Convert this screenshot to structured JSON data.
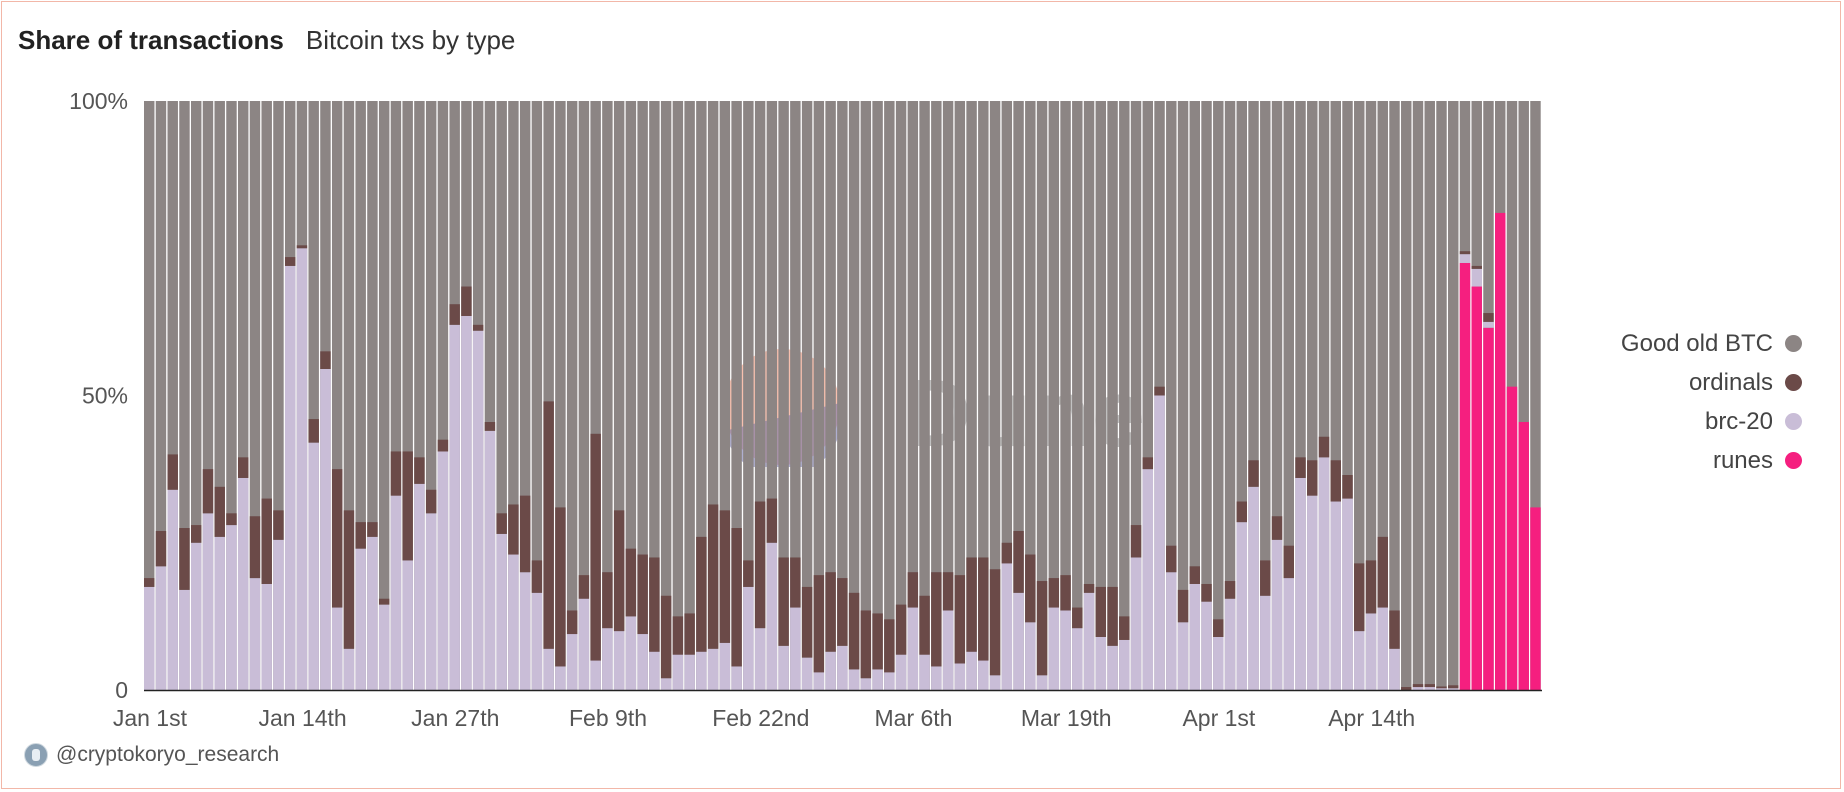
{
  "header": {
    "title": "Share of transactions",
    "subtitle": "Bitcoin txs by type"
  },
  "watermark": {
    "text": "Dune"
  },
  "credit": {
    "handle": "@cryptokoryo_research"
  },
  "legend": [
    {
      "label": "Good old BTC",
      "color": "#8c8584"
    },
    {
      "label": "ordinals",
      "color": "#6b4a48"
    },
    {
      "label": "brc-20",
      "color": "#c9bdd7"
    },
    {
      "label": "runes",
      "color": "#f51f7f"
    }
  ],
  "chart_data": {
    "type": "bar",
    "stacked": true,
    "normalized": true,
    "y_tick_labels": [
      "0",
      "50%",
      "100%"
    ],
    "ylim": [
      0,
      100
    ],
    "x_tick_labels": [
      "Jan 1st",
      "Jan 14th",
      "Jan 27th",
      "Feb 9th",
      "Feb 22nd",
      "Mar 6th",
      "Mar 19th",
      "Apr 1st",
      "Apr 14th"
    ],
    "x_tick_indices": [
      0,
      13,
      26,
      39,
      52,
      65,
      78,
      91,
      104
    ],
    "grid": false,
    "legend_position": "right",
    "series": [
      {
        "name": "runes",
        "color": "#f51f7f",
        "values": [
          0,
          0,
          0,
          0,
          0,
          0,
          0,
          0,
          0,
          0,
          0,
          0,
          0,
          0,
          0,
          0,
          0,
          0,
          0,
          0,
          0,
          0,
          0,
          0,
          0,
          0,
          0,
          0,
          0,
          0,
          0,
          0,
          0,
          0,
          0,
          0,
          0,
          0,
          0,
          0,
          0,
          0,
          0,
          0,
          0,
          0,
          0,
          0,
          0,
          0,
          0,
          0,
          0,
          0,
          0,
          0,
          0,
          0,
          0,
          0,
          0,
          0,
          0,
          0,
          0,
          0,
          0,
          0,
          0,
          0,
          0,
          0,
          0,
          0,
          0,
          0,
          0,
          0,
          0,
          0,
          0,
          0,
          0,
          0,
          0,
          0,
          0,
          0,
          0,
          0,
          0,
          0,
          0,
          0,
          0,
          0,
          0,
          0,
          0,
          0,
          0,
          0,
          0,
          0,
          0,
          0,
          0,
          0,
          0,
          0,
          0,
          0,
          72.5,
          68.5,
          61.5,
          81,
          51.5,
          45.5,
          31
        ]
      },
      {
        "name": "brc-20",
        "color": "#c9bdd7",
        "values": [
          17.5,
          21,
          34,
          17,
          25,
          30,
          26,
          28,
          36,
          19,
          18,
          25.5,
          72,
          75,
          42,
          54.5,
          14,
          7,
          24,
          26,
          14.5,
          33,
          22,
          35,
          30,
          40.5,
          62,
          63.5,
          61,
          44,
          26.5,
          23,
          20,
          16.5,
          7,
          4,
          9.5,
          15.5,
          5,
          10.5,
          10,
          12.5,
          9.5,
          6.5,
          2,
          6,
          6,
          6.5,
          7,
          8,
          4,
          17.5,
          10.5,
          25,
          7.5,
          14,
          5.5,
          3,
          6.5,
          7.5,
          3.5,
          2,
          3.5,
          3,
          6,
          14,
          6,
          4,
          13.5,
          4.5,
          6.5,
          5,
          2.5,
          21.5,
          16.5,
          11.5,
          2.5,
          14,
          13.5,
          10.5,
          16.5,
          9,
          7.5,
          8.5,
          22.5,
          37.5,
          50,
          20,
          11.5,
          18,
          15,
          9,
          15.5,
          28.5,
          34.5,
          16,
          25.5,
          19,
          36,
          33,
          39.5,
          32,
          32.5,
          10,
          13,
          14,
          7,
          0,
          0.5,
          0.5,
          0.3,
          0.3,
          1.5,
          3,
          1
        ]
      },
      {
        "name": "ordinals",
        "color": "#6b4a48",
        "values": [
          1.5,
          6,
          6,
          10.5,
          3,
          7.5,
          8.5,
          2,
          3.5,
          10.5,
          14.5,
          5,
          1.5,
          0.5,
          4,
          3,
          23.5,
          23.5,
          4.5,
          2.5,
          1,
          7.5,
          18.5,
          4.5,
          4,
          2,
          3.5,
          5,
          1,
          1.5,
          3.5,
          8.5,
          13,
          5.5,
          42,
          27,
          4,
          4,
          38.5,
          9.5,
          20.5,
          11.5,
          13.5,
          16,
          14,
          6.5,
          7,
          19.5,
          24.5,
          22.5,
          23.5,
          4.5,
          21.5,
          7.5,
          15,
          8.5,
          12,
          16.5,
          13.5,
          11.5,
          13,
          11.5,
          9.5,
          9,
          8.5,
          6,
          10,
          16,
          6.5,
          15,
          16,
          17.5,
          18,
          3.5,
          10.5,
          11.5,
          16,
          5,
          6,
          3.5,
          1.5,
          8.5,
          10,
          4,
          5.5,
          2,
          1.5,
          4.5,
          5.5,
          3,
          3,
          3,
          3,
          3.5,
          4.5,
          6,
          4,
          5.5,
          3.5,
          6,
          3.5,
          7,
          4,
          11.5,
          9,
          12,
          6.5,
          0.5,
          0.5,
          0.5,
          0.3,
          0.5,
          0.5,
          0.5,
          1.5
        ]
      }
    ],
    "remainder_series": {
      "name": "Good old BTC",
      "color": "#8c8584"
    }
  }
}
